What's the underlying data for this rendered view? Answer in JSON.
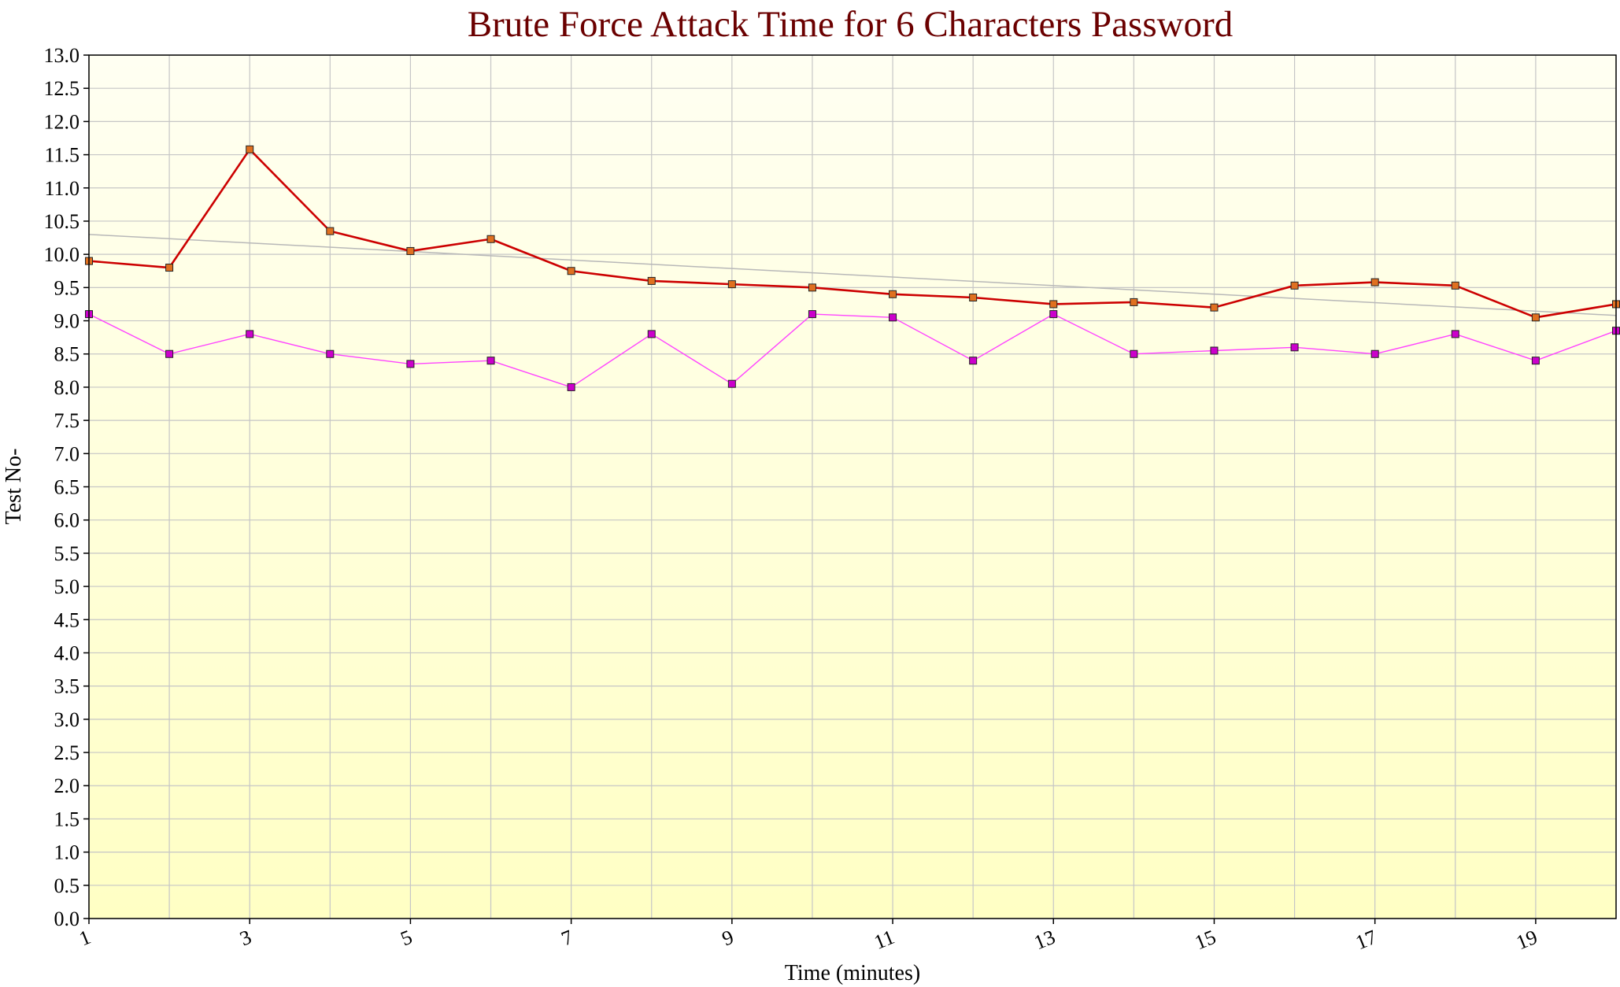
{
  "chart_data": {
    "type": "line",
    "title": "Brute Force Attack Time for 6 Characters Password",
    "xlabel": "Time (minutes)",
    "ylabel": "Test No-",
    "x": [
      1,
      2,
      3,
      4,
      5,
      6,
      7,
      8,
      9,
      10,
      11,
      12,
      13,
      14,
      15,
      16,
      17,
      18,
      19,
      20
    ],
    "x_tick_labels": [
      "1",
      "3",
      "5",
      "7",
      "9",
      "11",
      "13",
      "15",
      "17",
      "19"
    ],
    "y_tick_labels": [
      "0.0",
      "0.5",
      "1.0",
      "1.5",
      "2.0",
      "2.5",
      "3.0",
      "3.5",
      "4.0",
      "4.5",
      "5.0",
      "5.5",
      "6.0",
      "6.5",
      "7.0",
      "7.5",
      "8.0",
      "8.5",
      "9.0",
      "9.5",
      "10.0",
      "10.5",
      "11.0",
      "11.5",
      "12.0",
      "12.5",
      "13.0"
    ],
    "xlim": [
      1,
      20
    ],
    "ylim": [
      0,
      13
    ],
    "grid": true,
    "legend": "none",
    "series": [
      {
        "color": "#cc0000",
        "marker_color": "#e07020",
        "values": [
          9.9,
          9.8,
          11.58,
          10.35,
          10.05,
          10.23,
          9.75,
          9.6,
          9.55,
          9.5,
          9.4,
          9.35,
          9.25,
          9.28,
          9.2,
          9.53,
          9.58,
          9.53,
          9.05,
          9.25
        ]
      },
      {
        "color": "#ff44ff",
        "marker_color": "#cc00cc",
        "values": [
          9.1,
          8.5,
          8.8,
          8.5,
          8.35,
          8.4,
          8.0,
          8.8,
          8.05,
          9.1,
          9.05,
          8.4,
          9.1,
          8.5,
          8.55,
          8.6,
          8.5,
          8.8,
          8.4,
          8.85
        ]
      }
    ],
    "trendline": {
      "color": "#b8b8b8",
      "start": [
        1,
        10.3
      ],
      "end": [
        20,
        9.08
      ]
    }
  }
}
